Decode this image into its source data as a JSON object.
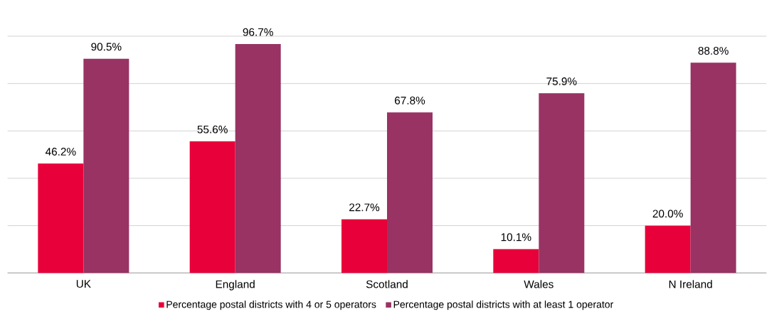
{
  "chart_data": {
    "type": "bar",
    "categories": [
      "UK",
      "England",
      "Scotland",
      "Wales",
      "N Ireland"
    ],
    "series": [
      {
        "name": "Percentage postal districts with 4 or 5 operators",
        "color": "#e8003a",
        "values": [
          46.2,
          55.6,
          22.7,
          10.1,
          20.0
        ],
        "value_labels": [
          "46.2%",
          "55.6%",
          "22.7%",
          "10.1%",
          "20.0%"
        ]
      },
      {
        "name": "Percentage postal districts with at least 1 operator",
        "color": "#983363",
        "values": [
          90.5,
          96.7,
          67.8,
          75.9,
          88.8
        ],
        "value_labels": [
          "90.5%",
          "96.7%",
          "67.8%",
          "75.9%",
          "88.8%"
        ]
      }
    ],
    "ylim": [
      0,
      100
    ],
    "yticks": [
      {
        "value": 0,
        "label": null
      },
      {
        "value": 20,
        "label": null
      },
      {
        "value": 40,
        "label": null
      },
      {
        "value": 60,
        "label": null
      },
      {
        "value": 80,
        "label": null
      },
      {
        "value": 100,
        "label": null
      }
    ],
    "tick_labels": "x",
    "grid": "y",
    "legend": "bottom"
  }
}
